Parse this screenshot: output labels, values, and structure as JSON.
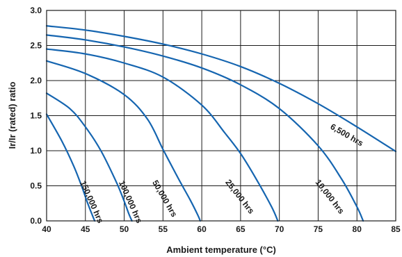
{
  "chart_data": {
    "type": "line",
    "title": "",
    "xlabel": "Ambient temperature (°C)",
    "ylabel": "Ir/Ir (rated) ratio",
    "xlim": [
      40,
      85
    ],
    "ylim": [
      0,
      3
    ],
    "xticks": [
      "40",
      "45",
      "50",
      "55",
      "60",
      "65",
      "70",
      "75",
      "80",
      "85"
    ],
    "yticks": [
      "0.0",
      "0.5",
      "1.0",
      "1.5",
      "2.0",
      "2.5",
      "3.0"
    ],
    "grid": true,
    "line_color": "#1565b0",
    "series": [
      {
        "name": "6,500 hrs",
        "x": [
          40,
          45,
          50,
          55,
          60,
          65,
          70,
          75,
          80,
          85
        ],
        "y": [
          2.78,
          2.72,
          2.63,
          2.52,
          2.38,
          2.2,
          1.96,
          1.67,
          1.34,
          0.99
        ]
      },
      {
        "name": "10,000 hrs",
        "x": [
          40,
          45,
          50,
          55,
          60,
          65,
          70,
          75,
          78,
          80,
          80.8
        ],
        "y": [
          2.65,
          2.58,
          2.48,
          2.35,
          2.18,
          1.94,
          1.6,
          1.07,
          0.6,
          0.2,
          0.0
        ]
      },
      {
        "name": "25,000 hrs",
        "x": [
          40,
          45,
          50,
          55,
          60,
          63,
          65,
          67,
          69,
          69.8
        ],
        "y": [
          2.45,
          2.38,
          2.25,
          2.05,
          1.65,
          1.25,
          0.96,
          0.6,
          0.2,
          0.0
        ]
      },
      {
        "name": "50,000 hrs",
        "x": [
          40,
          45,
          50,
          53,
          55,
          57,
          58.5,
          59.5,
          59.8
        ],
        "y": [
          2.28,
          2.1,
          1.8,
          1.45,
          1.02,
          0.6,
          0.3,
          0.08,
          0.0
        ]
      },
      {
        "name": "100,000 hrs",
        "x": [
          40,
          43,
          45,
          47,
          49,
          50,
          50.6,
          51
        ],
        "y": [
          1.82,
          1.6,
          1.34,
          1.0,
          0.55,
          0.28,
          0.1,
          0.0
        ]
      },
      {
        "name": "150,000 hrs",
        "x": [
          40,
          42,
          43.5,
          44.5,
          45.3,
          45.9,
          46.2
        ],
        "y": [
          1.52,
          1.13,
          0.78,
          0.5,
          0.25,
          0.08,
          0.0
        ]
      }
    ]
  }
}
